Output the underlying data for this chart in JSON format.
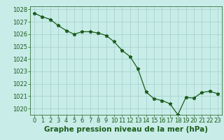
{
  "x": [
    0,
    1,
    2,
    3,
    4,
    5,
    6,
    7,
    8,
    9,
    10,
    11,
    12,
    13,
    14,
    15,
    16,
    17,
    18,
    19,
    20,
    21,
    22,
    23
  ],
  "y": [
    1027.7,
    1027.4,
    1027.2,
    1026.7,
    1026.3,
    1026.0,
    1026.2,
    1026.2,
    1026.1,
    1025.9,
    1025.4,
    1024.7,
    1024.2,
    1023.2,
    1021.35,
    1020.8,
    1020.65,
    1020.4,
    1019.5,
    1020.9,
    1020.85,
    1021.3,
    1021.4,
    1021.2
  ],
  "line_color": "#1a5c1a",
  "marker": "*",
  "marker_size": 3.5,
  "background_color": "#c8ece8",
  "grid_color": "#a0d0cc",
  "xlabel": "Graphe pression niveau de la mer (hPa)",
  "xlabel_color": "#1a5c1a",
  "tick_color": "#1a5c1a",
  "ylim": [
    1019.5,
    1028.25
  ],
  "yticks": [
    1020,
    1021,
    1022,
    1023,
    1024,
    1025,
    1026,
    1027,
    1028
  ],
  "xlim": [
    -0.5,
    23.5
  ],
  "xticks": [
    0,
    1,
    2,
    3,
    4,
    5,
    6,
    7,
    8,
    9,
    10,
    11,
    12,
    13,
    14,
    15,
    16,
    17,
    18,
    19,
    20,
    21,
    22,
    23
  ],
  "xlabel_fontsize": 7.5,
  "tick_fontsize": 6.0,
  "linewidth": 0.9
}
